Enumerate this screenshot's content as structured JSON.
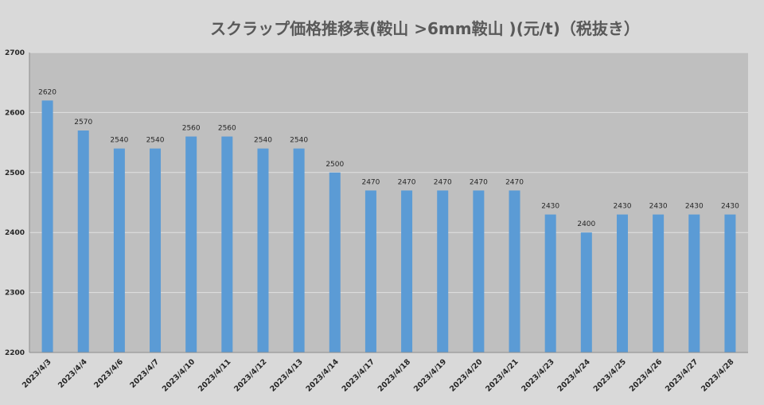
{
  "chart_data": {
    "type": "bar",
    "title": "スクラップ価格推移表(鞍山 >6mm鞍山 )(元/t)（税抜き）",
    "xlabel": "",
    "ylabel": "",
    "ylim": [
      2200,
      2700
    ],
    "yticks": [
      2200,
      2300,
      2400,
      2500,
      2600,
      2700
    ],
    "grid": true,
    "legend": "none",
    "bar_color": "#5b9bd5",
    "plot_background": "#bfbfbf",
    "page_background": "#d9d9d9",
    "gridline_color": "#e0e0e0",
    "categories": [
      "2023/4/3",
      "2023/4/4",
      "2023/4/6",
      "2023/4/7",
      "2023/4/10",
      "2023/4/11",
      "2023/4/12",
      "2023/4/13",
      "2023/4/14",
      "2023/4/17",
      "2023/4/18",
      "2023/4/19",
      "2023/4/20",
      "2023/4/21",
      "2023/4/23",
      "2023/4/24",
      "2023/4/25",
      "2023/4/26",
      "2023/4/27",
      "2023/4/28"
    ],
    "values": [
      2620,
      2570,
      2540,
      2540,
      2560,
      2560,
      2540,
      2540,
      2500,
      2470,
      2470,
      2470,
      2470,
      2470,
      2430,
      2400,
      2430,
      2430,
      2430,
      2430
    ]
  }
}
